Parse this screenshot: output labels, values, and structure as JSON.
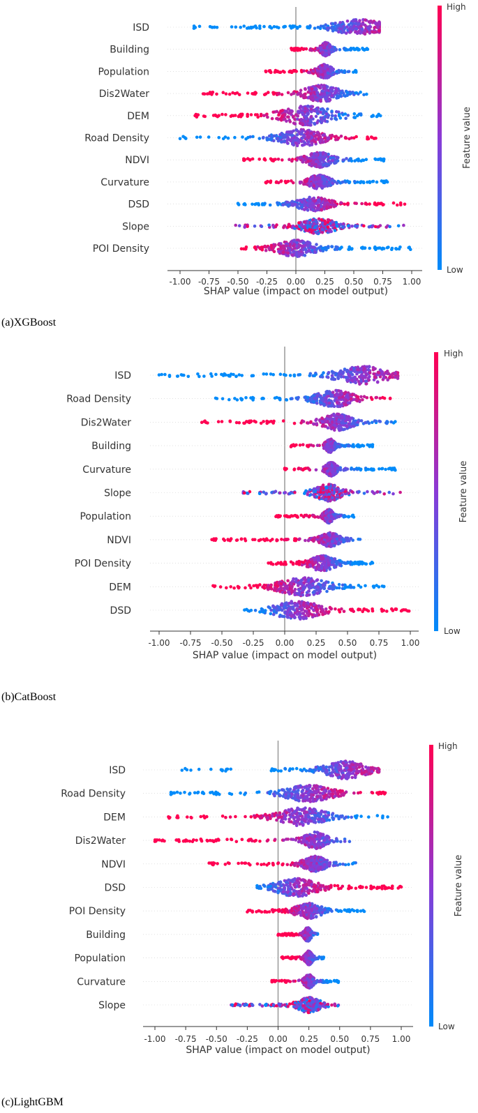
{
  "chart_data": [
    {
      "type": "scatter",
      "subtype": "shap-beeswarm",
      "caption": "(a)XGBoost",
      "xlabel": "SHAP value (impact on model output)",
      "xlim": [
        -1.1,
        1.08
      ],
      "xticks": [
        "-1.00",
        "-0.75",
        "-0.50",
        "-0.25",
        "0.00",
        "0.25",
        "0.50",
        "0.75",
        "1.00"
      ],
      "xtick_values": [
        -1.0,
        -0.75,
        -0.5,
        -0.25,
        0.0,
        0.25,
        0.5,
        0.75,
        1.0
      ],
      "colorbar": {
        "title": "Feature value",
        "high_label": "High",
        "low_label": "Low",
        "high_color": "#ff0052",
        "low_color": "#008bfa"
      },
      "features": [
        {
          "name": "ISD",
          "min": -0.88,
          "max": 0.72,
          "center": 0.55,
          "width": 0.3,
          "spread": 11,
          "high_side": "positive"
        },
        {
          "name": "Building",
          "min": -0.04,
          "max": 0.62,
          "center": 0.26,
          "width": 0.05,
          "spread": 10,
          "high_side": "negative"
        },
        {
          "name": "Population",
          "min": -0.26,
          "max": 0.52,
          "center": 0.25,
          "width": 0.08,
          "spread": 10,
          "high_side": "negative"
        },
        {
          "name": "Dis2Water",
          "min": -0.8,
          "max": 0.61,
          "center": 0.22,
          "width": 0.2,
          "spread": 12,
          "high_side": "negative"
        },
        {
          "name": "DEM",
          "min": -0.87,
          "max": 0.73,
          "center": 0.1,
          "width": 0.3,
          "spread": 14,
          "high_side": "negative"
        },
        {
          "name": "Road Density",
          "min": -1.0,
          "max": 0.69,
          "center": 0.05,
          "width": 0.25,
          "spread": 12,
          "high_side": "positive"
        },
        {
          "name": "NDVI",
          "min": -0.45,
          "max": 0.76,
          "center": 0.2,
          "width": 0.15,
          "spread": 11,
          "high_side": "negative"
        },
        {
          "name": "Curvature",
          "min": -0.26,
          "max": 0.79,
          "center": 0.2,
          "width": 0.12,
          "spread": 10,
          "high_side": "negative"
        },
        {
          "name": "DSD",
          "min": -0.5,
          "max": 0.94,
          "center": 0.15,
          "width": 0.2,
          "spread": 10,
          "high_side": "positive"
        },
        {
          "name": "Slope",
          "min": -0.52,
          "max": 0.93,
          "center": 0.2,
          "width": 0.2,
          "spread": 11,
          "high_side": "mixed"
        },
        {
          "name": "POI Density",
          "min": -0.47,
          "max": 0.99,
          "center": 0.0,
          "width": 0.22,
          "spread": 12,
          "high_side": "negative"
        }
      ]
    },
    {
      "type": "scatter",
      "subtype": "shap-beeswarm",
      "caption": "(b)CatBoost",
      "xlabel": "SHAP value (impact on model output)",
      "xlim": [
        -1.1,
        1.08
      ],
      "xticks": [
        "-1.00",
        "-0.75",
        "-0.50",
        "-0.25",
        "0.00",
        "0.25",
        "0.50",
        "0.75",
        "1.00"
      ],
      "xtick_values": [
        -1.0,
        -0.75,
        -0.5,
        -0.25,
        0.0,
        0.25,
        0.5,
        0.75,
        1.0
      ],
      "colorbar": {
        "title": "Feature value",
        "high_label": "High",
        "low_label": "Low",
        "high_color": "#ff0052",
        "low_color": "#008bfa"
      },
      "features": [
        {
          "name": "ISD",
          "min": -1.0,
          "max": 0.9,
          "center": 0.62,
          "width": 0.28,
          "spread": 13,
          "high_side": "positive"
        },
        {
          "name": "Road Density",
          "min": -0.55,
          "max": 0.84,
          "center": 0.4,
          "width": 0.2,
          "spread": 12,
          "high_side": "positive"
        },
        {
          "name": "Dis2Water",
          "min": -0.66,
          "max": 0.88,
          "center": 0.42,
          "width": 0.16,
          "spread": 12,
          "high_side": "negative"
        },
        {
          "name": "Building",
          "min": 0.05,
          "max": 0.7,
          "center": 0.36,
          "width": 0.04,
          "spread": 10,
          "high_side": "negative"
        },
        {
          "name": "Curvature",
          "min": 0.0,
          "max": 0.88,
          "center": 0.37,
          "width": 0.05,
          "spread": 10,
          "high_side": "negative"
        },
        {
          "name": "Slope",
          "min": -0.33,
          "max": 0.92,
          "center": 0.35,
          "width": 0.14,
          "spread": 12,
          "high_side": "mixed"
        },
        {
          "name": "Population",
          "min": -0.07,
          "max": 0.55,
          "center": 0.35,
          "width": 0.04,
          "spread": 10,
          "high_side": "negative"
        },
        {
          "name": "NDVI",
          "min": -0.58,
          "max": 0.6,
          "center": 0.36,
          "width": 0.1,
          "spread": 10,
          "high_side": "negative"
        },
        {
          "name": "POI Density",
          "min": -0.13,
          "max": 0.7,
          "center": 0.3,
          "width": 0.14,
          "spread": 11,
          "high_side": "negative"
        },
        {
          "name": "DEM",
          "min": -0.57,
          "max": 0.79,
          "center": 0.15,
          "width": 0.26,
          "spread": 13,
          "high_side": "negative"
        },
        {
          "name": "DSD",
          "min": -0.32,
          "max": 0.99,
          "center": 0.1,
          "width": 0.25,
          "spread": 13,
          "high_side": "positive"
        }
      ]
    },
    {
      "type": "scatter",
      "subtype": "shap-beeswarm",
      "caption": "(c)LightGBM",
      "xlabel": "SHAP value (impact on model output)",
      "xlim": [
        -1.1,
        1.08
      ],
      "xticks": [
        "-1.00",
        "-0.75",
        "-0.50",
        "-0.25",
        "0.00",
        "0.25",
        "0.50",
        "0.75",
        "1.00"
      ],
      "xtick_values": [
        -1.0,
        -0.75,
        -0.5,
        -0.25,
        0.0,
        0.25,
        0.5,
        0.75,
        1.0
      ],
      "colorbar": {
        "title": "Feature value",
        "high_label": "High",
        "low_label": "Low",
        "high_color": "#ff0052",
        "low_color": "#008bfa"
      },
      "features": [
        {
          "name": "ISD",
          "min": -0.78,
          "max": 0.82,
          "center": 0.55,
          "width": 0.22,
          "spread": 13,
          "high_side": "positive"
        },
        {
          "name": "Road Density",
          "min": -0.87,
          "max": 0.87,
          "center": 0.25,
          "width": 0.25,
          "spread": 12,
          "high_side": "positive"
        },
        {
          "name": "DEM",
          "min": -0.89,
          "max": 0.89,
          "center": 0.2,
          "width": 0.26,
          "spread": 13,
          "high_side": "negative"
        },
        {
          "name": "Dis2Water",
          "min": -1.0,
          "max": 0.58,
          "center": 0.3,
          "width": 0.12,
          "spread": 12,
          "high_side": "negative"
        },
        {
          "name": "NDVI",
          "min": -0.56,
          "max": 0.63,
          "center": 0.3,
          "width": 0.12,
          "spread": 11,
          "high_side": "negative"
        },
        {
          "name": "DSD",
          "min": -0.17,
          "max": 1.0,
          "center": 0.15,
          "width": 0.22,
          "spread": 13,
          "high_side": "positive"
        },
        {
          "name": "POI Density",
          "min": -0.25,
          "max": 0.7,
          "center": 0.25,
          "width": 0.14,
          "spread": 11,
          "high_side": "negative"
        },
        {
          "name": "Building",
          "min": 0.0,
          "max": 0.32,
          "center": 0.24,
          "width": 0.03,
          "spread": 10,
          "high_side": "negative"
        },
        {
          "name": "Population",
          "min": 0.03,
          "max": 0.37,
          "center": 0.25,
          "width": 0.03,
          "spread": 10,
          "high_side": "negative"
        },
        {
          "name": "Curvature",
          "min": -0.05,
          "max": 0.49,
          "center": 0.25,
          "width": 0.04,
          "spread": 10,
          "high_side": "negative"
        },
        {
          "name": "Slope",
          "min": -0.38,
          "max": 0.49,
          "center": 0.25,
          "width": 0.12,
          "spread": 11,
          "high_side": "mixed"
        }
      ]
    }
  ]
}
